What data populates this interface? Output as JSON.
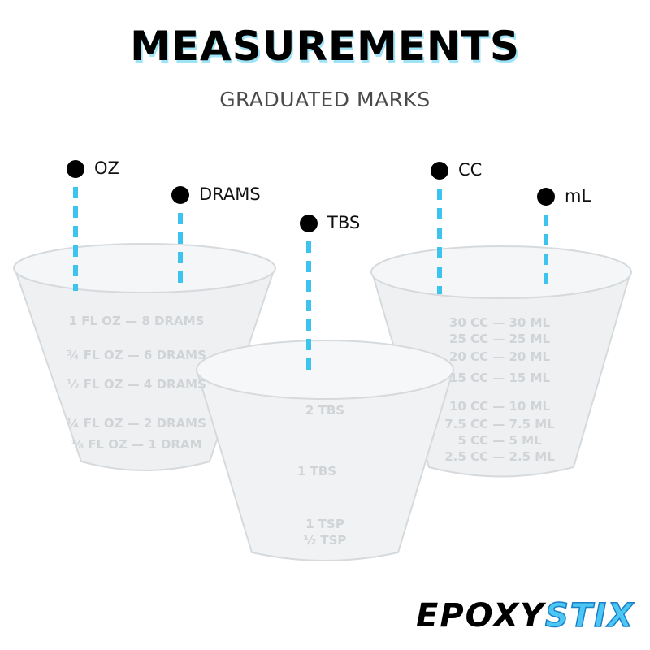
{
  "header": {
    "title": "MEASUREMENTS",
    "subtitle": "GRADUATED MARKS"
  },
  "callouts": [
    {
      "label": "OZ"
    },
    {
      "label": "DRAMS"
    },
    {
      "label": "TBS"
    },
    {
      "label": "CC"
    },
    {
      "label": "mL"
    }
  ],
  "cups": {
    "left": [
      "1 FL OZ — 8 DRAMS",
      "¾ FL OZ — 6 DRAMS",
      "½ FL OZ — 4 DRAMS",
      "¼ FL OZ — 2 DRAMS",
      "⅛ FL OZ — 1 DRAM"
    ],
    "middle": [
      "2 TBS",
      "1 TBS",
      "1 TSP",
      "½ TSP"
    ],
    "right": [
      "30 CC — 30 ML",
      "25 CC — 25 ML",
      "20 CC — 20 ML",
      "15 CC — 15 ML",
      "10 CC — 10 ML",
      "7.5 CC — 7.5 ML",
      "5 CC — 5 ML",
      "2.5 CC — 2.5 ML"
    ]
  },
  "logo": {
    "part1": "EPOXY",
    "part2": "STIX"
  },
  "colors": {
    "accent": "#3cc4ee",
    "cup": "#eceff1",
    "text": "#000000"
  }
}
